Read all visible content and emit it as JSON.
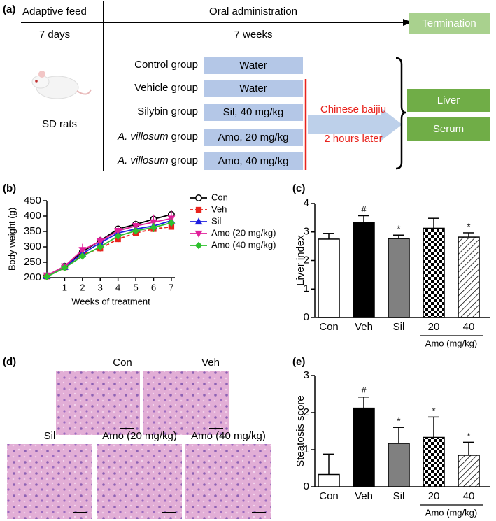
{
  "diagram": {
    "panel_label": "(a)",
    "phases": [
      {
        "label": "Adaptive feed",
        "duration": "7 days"
      },
      {
        "label": "Oral administration",
        "duration": "7 weeks"
      }
    ],
    "termination": "Termination",
    "animal": "SD rats",
    "groups": [
      {
        "label": "Control group",
        "treatment": "Water"
      },
      {
        "label": "Vehicle group",
        "treatment": "Water"
      },
      {
        "label": "Silybin group",
        "treatment": "Sil, 40 mg/kg"
      },
      {
        "label_italic": "A. villosum",
        "label": "group",
        "treatment": "Amo, 20 mg/kg"
      },
      {
        "label_italic": "A. villosum",
        "label": "group",
        "treatment": "Amo, 40 mg/kg"
      }
    ],
    "challenge": "Chinese baijiu",
    "timing": "2 hours later",
    "samples": [
      "Liver",
      "Serum"
    ]
  },
  "chart_data": [
    {
      "type": "line",
      "panel_label": "(b)",
      "ylabel": "Body weight (g)",
      "xlabel": "Weeks of treatment",
      "x": [
        0,
        1,
        2,
        3,
        4,
        5,
        6,
        7
      ],
      "xlim": [
        0,
        7.2
      ],
      "xticks": [
        1,
        2,
        3,
        4,
        5,
        6,
        7
      ],
      "ylim": [
        200,
        450
      ],
      "yticks": [
        200,
        250,
        300,
        350,
        400,
        450
      ],
      "series": [
        {
          "name": "Con",
          "color": "#000000",
          "marker": "circle",
          "values": [
            205,
            237,
            284,
            320,
            358,
            373,
            390,
            405
          ],
          "errors": [
            3,
            6,
            12,
            12,
            12,
            12,
            12,
            15
          ]
        },
        {
          "name": "Veh",
          "color": "#e8231d",
          "marker": "square",
          "dashed": true,
          "values": [
            204,
            234,
            275,
            295,
            325,
            345,
            358,
            365
          ],
          "errors": [
            3,
            5,
            10,
            10,
            10,
            10,
            8,
            8
          ]
        },
        {
          "name": "Sil",
          "color": "#1f1fe0",
          "marker": "triangle",
          "values": [
            205,
            235,
            278,
            313,
            345,
            358,
            368,
            385
          ],
          "errors": [
            3,
            5,
            10,
            10,
            10,
            10,
            10,
            12
          ]
        },
        {
          "name": "Amo (20 mg/kg)",
          "color": "#e0209a",
          "marker": "triangle-down",
          "values": [
            207,
            237,
            290,
            318,
            352,
            368,
            380,
            392
          ],
          "errors": [
            4,
            6,
            20,
            15,
            15,
            15,
            25,
            25
          ]
        },
        {
          "name": "Amo (40 mg/kg)",
          "color": "#2ec02e",
          "marker": "diamond",
          "values": [
            203,
            232,
            270,
            300,
            335,
            352,
            363,
            378
          ],
          "errors": [
            3,
            5,
            10,
            10,
            12,
            12,
            15,
            15
          ]
        }
      ]
    },
    {
      "type": "bar",
      "panel_label": "(c)",
      "ylabel": "Liver index",
      "x_group_label": "Amo (mg/kg)",
      "categories": [
        "Con",
        "Veh",
        "Sil",
        "20",
        "40"
      ],
      "values": [
        2.75,
        3.32,
        2.77,
        3.13,
        2.82
      ],
      "errors": [
        0.2,
        0.25,
        0.12,
        0.35,
        0.15
      ],
      "annotations": [
        null,
        "#",
        "*",
        null,
        "*"
      ],
      "fills": [
        "#ffffff",
        "#000000",
        "#808080",
        "checker",
        "hatch"
      ],
      "ylim": [
        0,
        4
      ],
      "yticks": [
        0,
        1,
        2,
        3,
        4
      ]
    },
    {
      "type": "bar",
      "panel_label": "(e)",
      "ylabel": "Steatosis score",
      "x_group_label": "Amo (mg/kg)",
      "categories": [
        "Con",
        "Veh",
        "Sil",
        "20",
        "40"
      ],
      "values": [
        0.33,
        2.12,
        1.17,
        1.33,
        0.85
      ],
      "errors": [
        0.55,
        0.3,
        0.43,
        0.55,
        0.35
      ],
      "annotations": [
        null,
        "#",
        "*",
        "*",
        "*"
      ],
      "fills": [
        "#ffffff",
        "#000000",
        "#808080",
        "checker",
        "hatch"
      ],
      "ylim": [
        0,
        3
      ],
      "yticks": [
        0,
        1,
        2,
        3
      ]
    }
  ],
  "histology": {
    "panel_label": "(d)",
    "images": [
      {
        "label": "Con"
      },
      {
        "label": "Veh"
      },
      {
        "label": "Sil"
      },
      {
        "label": "Amo (20 mg/kg)"
      },
      {
        "label": "Amo (40 mg/kg)"
      }
    ]
  }
}
